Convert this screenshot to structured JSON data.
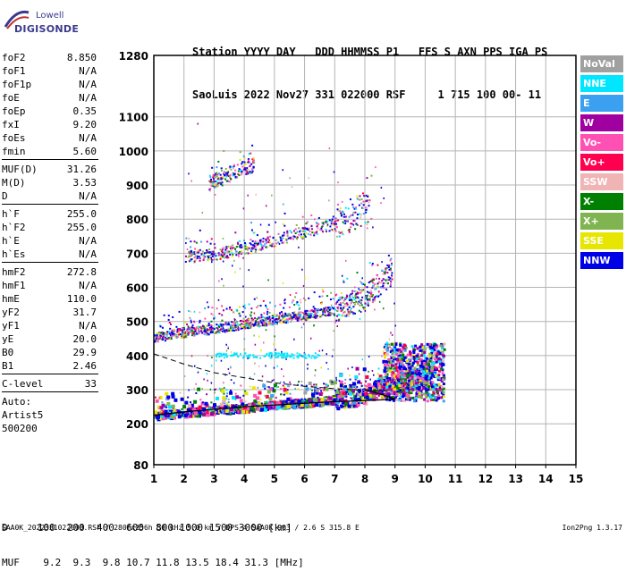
{
  "logo": {
    "line1": "Lowell",
    "line2": "DIGISONDE"
  },
  "header": {
    "line1": "Station YYYY DAY   DDD HHMMSS P1   FFS S AXN PPS IGA PS",
    "line2": "SaoLuis 2022 Nov27 331 022000 RSF     1 715 100 00- 11"
  },
  "params": {
    "group1": [
      {
        "name": "foF2",
        "value": "8.850"
      },
      {
        "name": "foF1",
        "value": "N/A"
      },
      {
        "name": "foF1p",
        "value": "N/A"
      },
      {
        "name": "foE",
        "value": "N/A"
      },
      {
        "name": "foEp",
        "value": "0.35"
      },
      {
        "name": "fxI",
        "value": "9.20"
      },
      {
        "name": "foEs",
        "value": "N/A"
      },
      {
        "name": "fmin",
        "value": "5.60"
      }
    ],
    "group2": [
      {
        "name": "MUF(D)",
        "value": "31.26"
      },
      {
        "name": "M(D)",
        "value": "3.53"
      },
      {
        "name": "D",
        "value": "N/A"
      }
    ],
    "group3": [
      {
        "name": "h`F",
        "value": "255.0"
      },
      {
        "name": "h`F2",
        "value": "255.0"
      },
      {
        "name": "h`E",
        "value": "N/A"
      },
      {
        "name": "h`Es",
        "value": "N/A"
      }
    ],
    "group4": [
      {
        "name": "hmF2",
        "value": "272.8"
      },
      {
        "name": "hmF1",
        "value": "N/A"
      },
      {
        "name": "hmE",
        "value": "110.0"
      },
      {
        "name": "yF2",
        "value": "31.7"
      },
      {
        "name": "yF1",
        "value": "N/A"
      },
      {
        "name": "yE",
        "value": "20.0"
      },
      {
        "name": "B0",
        "value": "29.9"
      },
      {
        "name": "B1",
        "value": "2.46"
      }
    ],
    "clevel": {
      "name": "C-level",
      "value": "33"
    },
    "auto": [
      "Auto:",
      "Artist5",
      "500200"
    ]
  },
  "legend": [
    {
      "label": "NoVal",
      "color": "#a0a0a0"
    },
    {
      "label": "NNE",
      "color": "#00e6ff"
    },
    {
      "label": "E",
      "color": "#3ca0f0"
    },
    {
      "label": "W",
      "color": "#a000a0"
    },
    {
      "label": "Vo-",
      "color": "#ff50b4"
    },
    {
      "label": "Vo+",
      "color": "#ff0050"
    },
    {
      "label": "SSW",
      "color": "#f0b4b4"
    },
    {
      "label": "X-",
      "color": "#008000"
    },
    {
      "label": "X+",
      "color": "#80b450"
    },
    {
      "label": "SSE",
      "color": "#e6e600"
    },
    {
      "label": "NNW",
      "color": "#0000e6"
    }
  ],
  "bottom": {
    "line1": "D     100  200  400  600  800 1000 1500 3000 [km]",
    "line2": "MUF    9.2  9.3  9.8 10.7 11.8 13.5 18.4 31.3 [MHz]"
  },
  "footer": {
    "left": "SAA0K_2022331022000.RSF / 280fx256h 50 kHz 5.0 km / DPS-4 SAA0K 903 / 2.6 S 315.8 E",
    "right": "Ion2Png 1.3.17"
  },
  "chart_data": {
    "type": "scatter",
    "xlim": [
      1,
      15
    ],
    "ylim": [
      80,
      1280
    ],
    "x_ticks": [
      1,
      2,
      3,
      4,
      5,
      6,
      7,
      8,
      9,
      10,
      11,
      12,
      13,
      14,
      15
    ],
    "y_ticks": [
      80,
      200,
      300,
      400,
      500,
      600,
      700,
      800,
      900,
      1000,
      1100,
      1280
    ],
    "grid": true,
    "series": [
      {
        "name": "NoVal",
        "color": "#a0a0a0"
      },
      {
        "name": "NNE",
        "color": "#00e6ff"
      },
      {
        "name": "E",
        "color": "#3ca0f0"
      },
      {
        "name": "W",
        "color": "#a000a0"
      },
      {
        "name": "Vo-",
        "color": "#ff50b4"
      },
      {
        "name": "Vo+",
        "color": "#ff0050"
      },
      {
        "name": "SSW",
        "color": "#f0b4b4"
      },
      {
        "name": "X-",
        "color": "#008000"
      },
      {
        "name": "X+",
        "color": "#80b450"
      },
      {
        "name": "SSE",
        "color": "#e6e600"
      },
      {
        "name": "NNW",
        "color": "#0000e6"
      }
    ],
    "trace_bands": [
      {
        "x": [
          1.0,
          2.0,
          3.0,
          4.0,
          5.0,
          6.0,
          7.0,
          8.0,
          9.0,
          10.0
        ],
        "y": [
          228,
          236,
          243,
          250,
          258,
          265,
          275,
          290,
          320,
          345
        ]
      },
      {
        "x": [
          1.0,
          2.0,
          3.0,
          4.0,
          5.0,
          6.0,
          7.0,
          8.0,
          8.8
        ],
        "y": [
          455,
          470,
          480,
          495,
          508,
          520,
          535,
          575,
          640
        ]
      },
      {
        "x": [
          2.0,
          3.0,
          4.0,
          5.0,
          6.0,
          7.0,
          8.0
        ],
        "y": [
          690,
          700,
          715,
          740,
          765,
          790,
          830
        ]
      },
      {
        "x": [
          2.8,
          3.5,
          4.2
        ],
        "y": [
          905,
          935,
          960
        ]
      }
    ],
    "profile_fit": {
      "x": [
        1.0,
        2.0,
        3.0,
        4.0,
        5.0,
        6.0,
        7.0,
        8.0,
        9.0,
        8.6,
        8.0
      ],
      "y": [
        225,
        235,
        243,
        250,
        255,
        260,
        265,
        268,
        272,
        285,
        300
      ]
    },
    "dashed_curve": {
      "x": [
        1.0,
        1.5,
        2.0,
        3.0,
        4.0,
        5.0,
        6.0,
        7.0,
        8.0,
        8.8
      ],
      "y": [
        405,
        390,
        375,
        350,
        335,
        320,
        310,
        303,
        298,
        296
      ]
    }
  }
}
